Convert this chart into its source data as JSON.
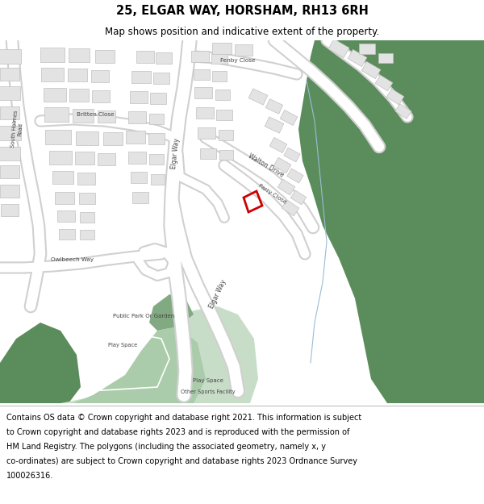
{
  "title_line1": "25, ELGAR WAY, HORSHAM, RH13 6RH",
  "title_line2": "Map shows position and indicative extent of the property.",
  "footer_lines": [
    "Contains OS data © Crown copyright and database right 2021. This information is subject",
    "to Crown copyright and database rights 2023 and is reproduced with the permission of",
    "HM Land Registry. The polygons (including the associated geometry, namely x, y",
    "co-ordinates) are subject to Crown copyright and database rights 2023 Ordnance Survey",
    "100026316."
  ],
  "bg_color": "#ffffff",
  "building_fill": "#e3e3e3",
  "building_outline": "#c0c0c0",
  "road_outline": "#d0d0d0",
  "green_dark": "#5b8c5b",
  "green_mid": "#82aa82",
  "green_light": "#aaccaa",
  "green_lightest": "#c8ddc8",
  "red_property": "#cc0000",
  "water_line": "#9bbdd4",
  "title_fontsize": 10.5,
  "subtitle_fontsize": 8.5,
  "footer_fontsize": 7.0,
  "label_fontsize": 5.8,
  "label_color": "#444444"
}
